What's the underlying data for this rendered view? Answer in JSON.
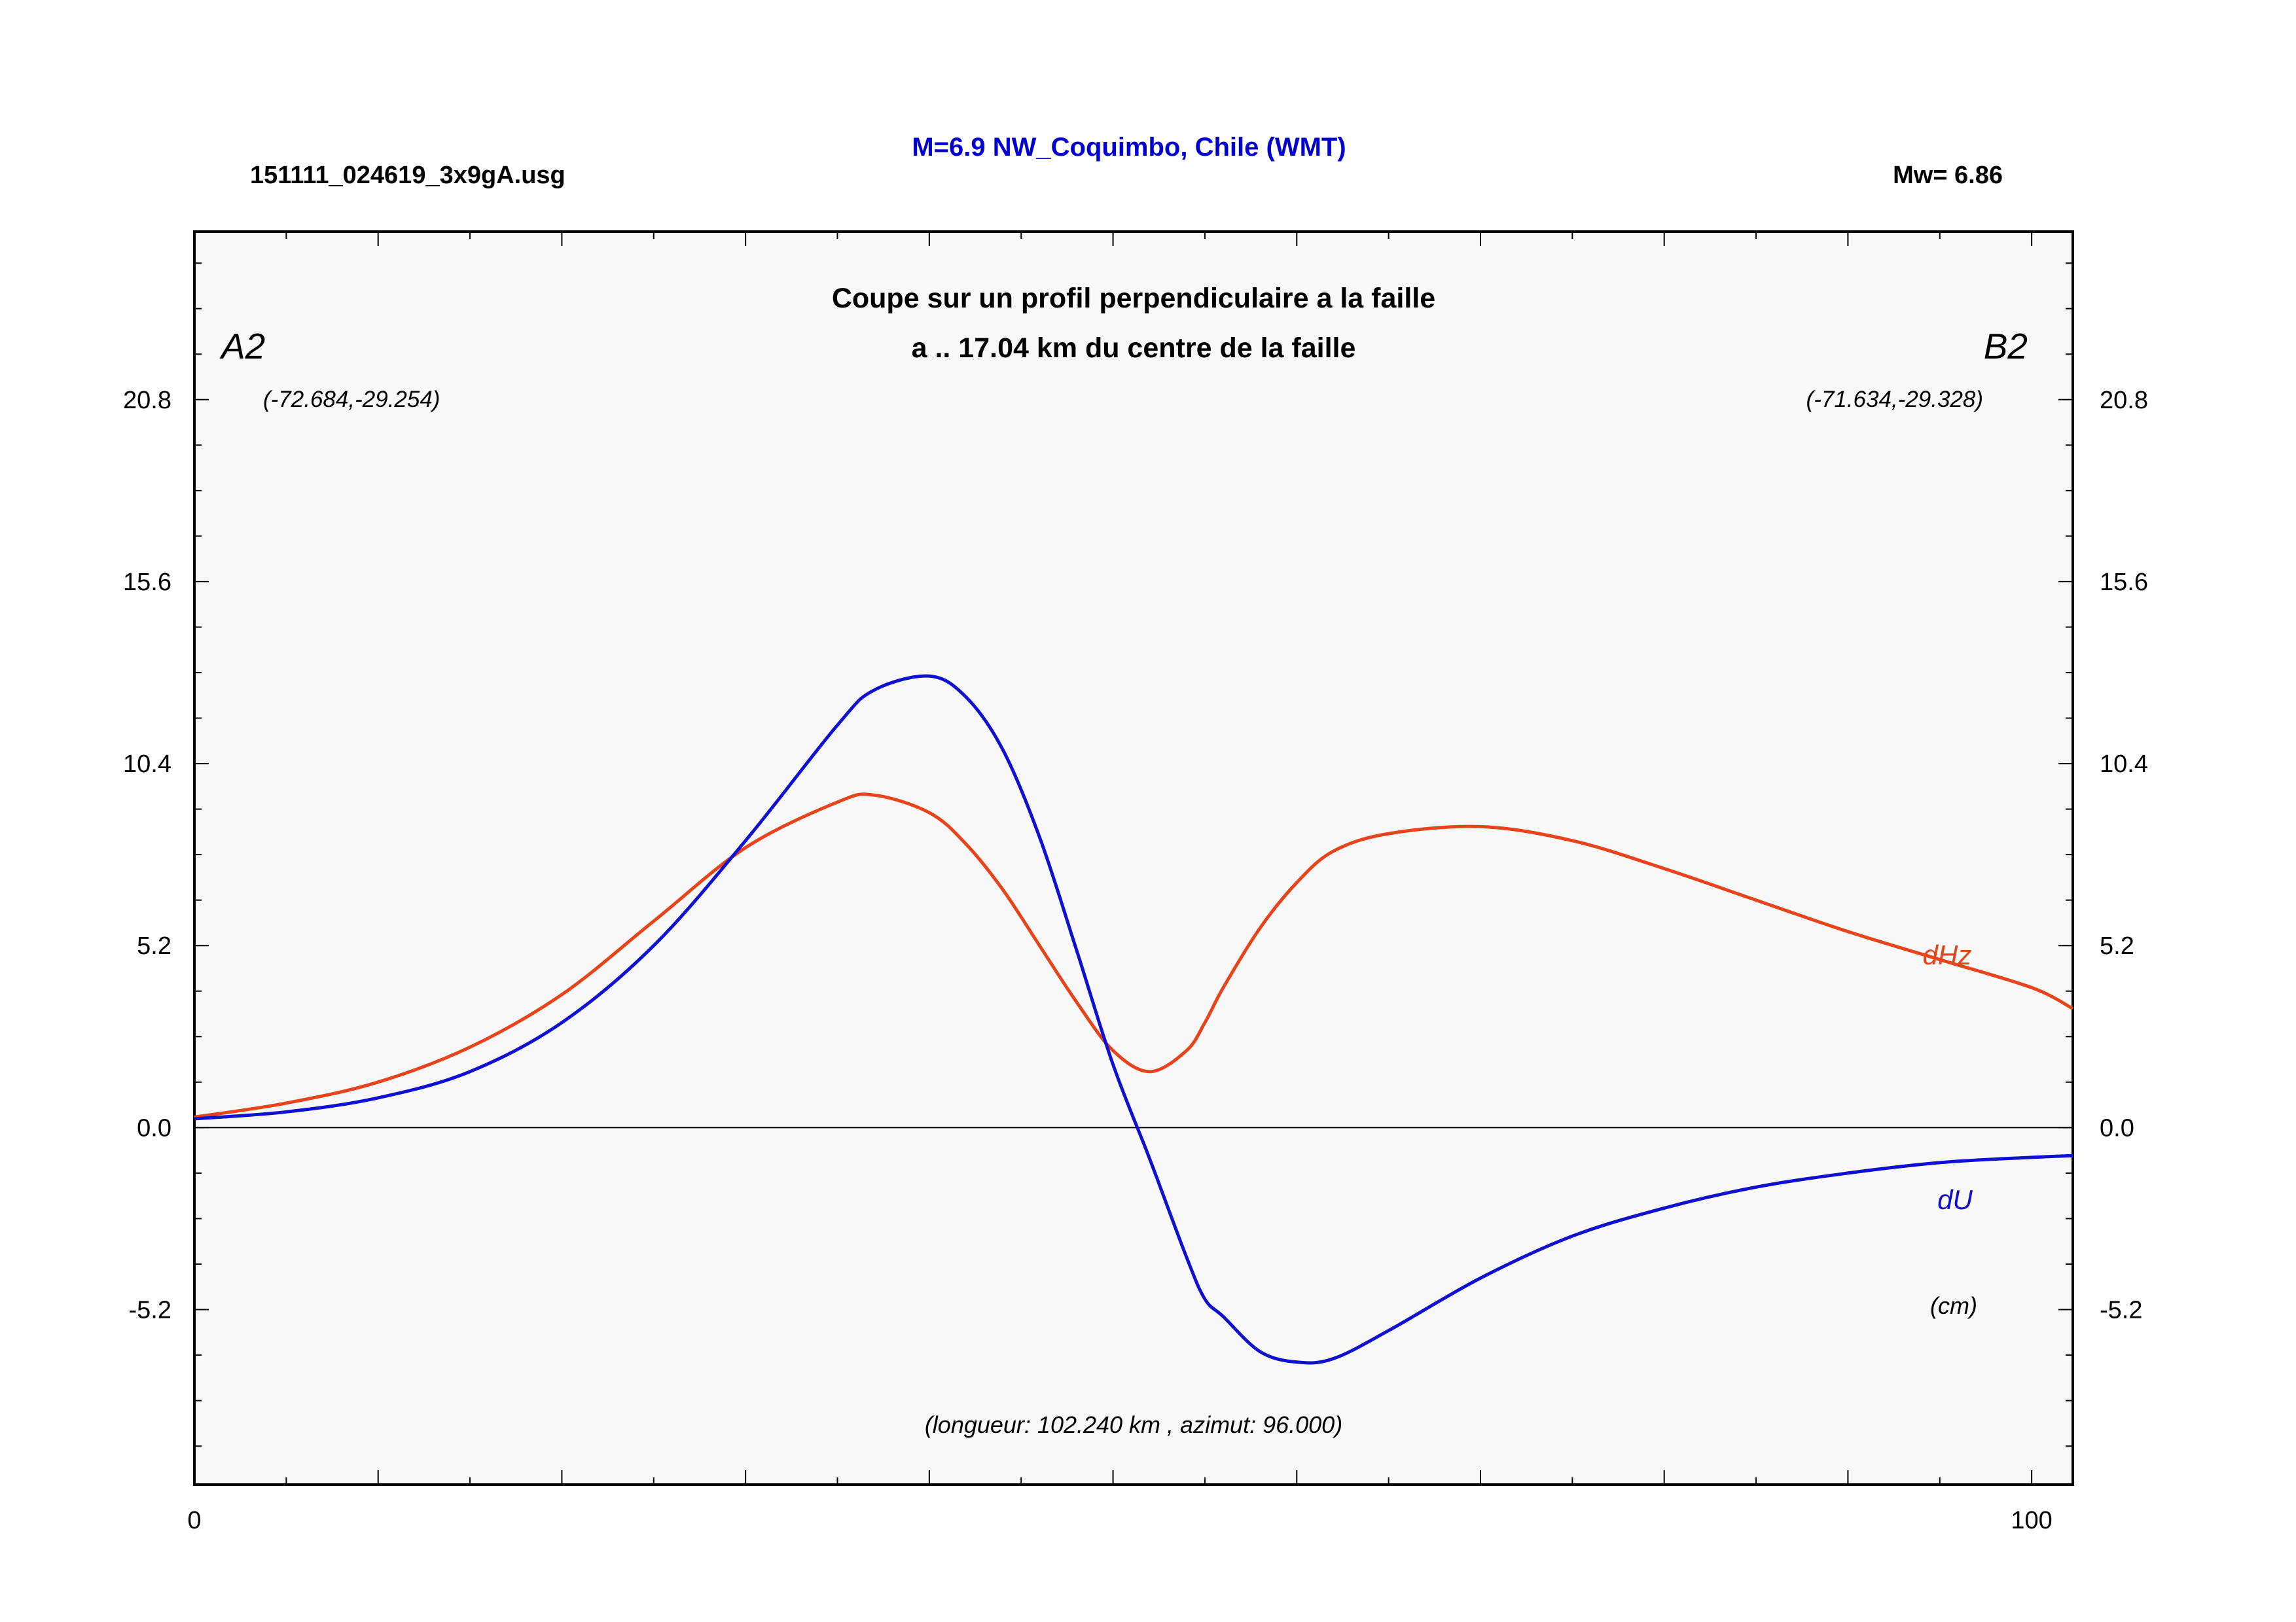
{
  "header": {
    "file_name": "151111_024619_3x9gA.usg",
    "event_title": "M=6.9 NW_Coquimbo, Chile (WMT)",
    "magnitude": "Mw= 6.86"
  },
  "chart_data": {
    "type": "line",
    "title": "Coupe sur un profil perpendiculaire a la faille",
    "subtitle": "a .. 17.04 km du centre de la faille",
    "start_label": "A2",
    "start_coord": "(-72.684,-29.254)",
    "end_label": "B2",
    "end_coord": "(-71.634,-29.328)",
    "unit_label": "(cm)",
    "footnote": "(longueur: 102.240 km , azimut: 96.000)",
    "xlim": [
      0,
      102.24
    ],
    "ylim": [
      -10.2,
      25.6
    ],
    "x_ticks": [
      0,
      100
    ],
    "x_tick_labels": [
      "0",
      "100"
    ],
    "y_ticks": [
      -5.2,
      0.0,
      5.2,
      10.4,
      15.6,
      20.8
    ],
    "y_tick_labels": [
      "-5.2",
      "0.0",
      "5.2",
      "10.4",
      "15.6",
      "20.8"
    ],
    "zero_line": true,
    "grid": false,
    "x": [
      0,
      5,
      10,
      15,
      20,
      25,
      30,
      35,
      37,
      40,
      42,
      44,
      46,
      48,
      50,
      52,
      54,
      55,
      56,
      58,
      60,
      62,
      65,
      70,
      75,
      80,
      85,
      90,
      95,
      100,
      102.24
    ],
    "series": [
      {
        "name": "dHz",
        "color": "#e8431a",
        "values": [
          0.3,
          0.7,
          1.3,
          2.3,
          3.8,
          5.9,
          8.0,
          9.3,
          9.5,
          9.0,
          8.1,
          6.8,
          5.2,
          3.6,
          2.2,
          1.6,
          2.2,
          3.0,
          4.0,
          5.7,
          7.0,
          7.9,
          8.4,
          8.6,
          8.2,
          7.4,
          6.5,
          5.6,
          4.8,
          4.0,
          3.4
        ]
      },
      {
        "name": "dU",
        "color": "#1010d0",
        "values": [
          0.25,
          0.45,
          0.85,
          1.6,
          3.0,
          5.2,
          8.2,
          11.5,
          12.5,
          12.9,
          12.3,
          10.8,
          8.3,
          5.1,
          1.8,
          -0.9,
          -3.7,
          -4.9,
          -5.4,
          -6.4,
          -6.7,
          -6.6,
          -5.8,
          -4.3,
          -3.1,
          -2.3,
          -1.7,
          -1.3,
          -1.0,
          -0.85,
          -0.8
        ]
      }
    ]
  }
}
